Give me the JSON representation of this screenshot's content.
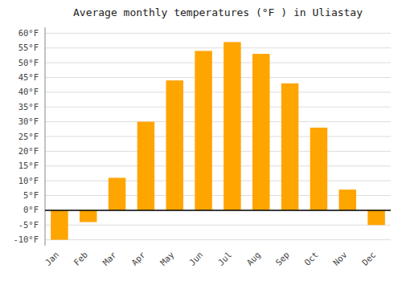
{
  "chart_data": {
    "type": "bar",
    "title": "Average monthly temperatures (°F ) in Uliastay",
    "categories": [
      "Jan",
      "Feb",
      "Mar",
      "Apr",
      "May",
      "Jun",
      "Jul",
      "Aug",
      "Sep",
      "Oct",
      "Nov",
      "Dec"
    ],
    "values": [
      -10,
      -4,
      11,
      30,
      44,
      54,
      57,
      53,
      43,
      28,
      7,
      -5
    ],
    "color": "#FFA500",
    "ylim": [
      -12,
      62
    ],
    "yticks": [
      {
        "value": -10,
        "label": "-10°F"
      },
      {
        "value": -5,
        "label": "-5°F"
      },
      {
        "value": 0,
        "label": "0°F"
      },
      {
        "value": 5,
        "label": "5°F"
      },
      {
        "value": 10,
        "label": "10°F"
      },
      {
        "value": 15,
        "label": "15°F"
      },
      {
        "value": 20,
        "label": "20°F"
      },
      {
        "value": 25,
        "label": "25°F"
      },
      {
        "value": 30,
        "label": "30°F"
      },
      {
        "value": 35,
        "label": "35°F"
      },
      {
        "value": 40,
        "label": "40°F"
      },
      {
        "value": 45,
        "label": "45°F"
      },
      {
        "value": 50,
        "label": "50°F"
      },
      {
        "value": 55,
        "label": "55°F"
      },
      {
        "value": 60,
        "label": "60°F"
      }
    ],
    "grid": true
  }
}
